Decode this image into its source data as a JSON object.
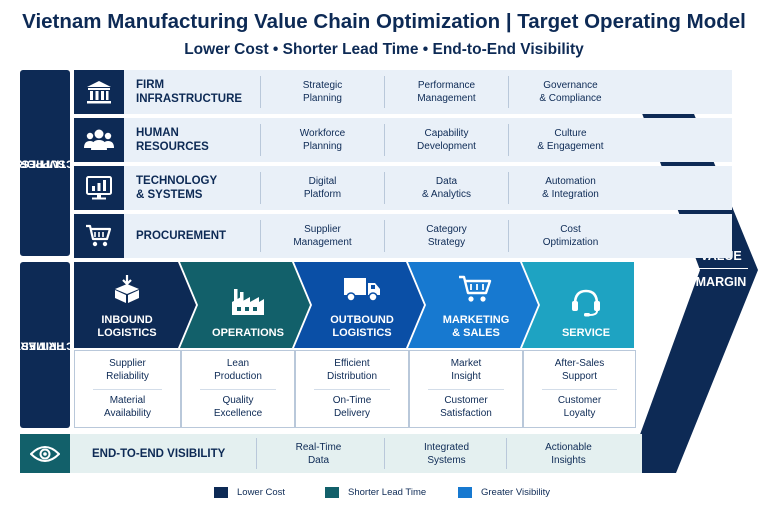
{
  "header": {
    "title": "Vietnam Manufacturing Value Chain Optimization | Target Operating Model",
    "subtitle": "Lower Cost • Shorter Lead Time • End-to-End Visibility"
  },
  "value_margin": {
    "line1": "VALUE",
    "line2": "MARGIN"
  },
  "support": {
    "label_line1": "SUPPORT",
    "label_line2": "ACTIVITIES",
    "rows": [
      {
        "icon": "bank-icon",
        "title_l1": "FIRM",
        "title_l2": "INFRASTRUCTURE",
        "cells": [
          {
            "l1": "Strategic",
            "l2": "Planning"
          },
          {
            "l1": "Performance",
            "l2": "Management"
          },
          {
            "l1": "Governance",
            "l2": "& Compliance"
          }
        ]
      },
      {
        "icon": "people-icon",
        "title_l1": "HUMAN",
        "title_l2": "RESOURCES",
        "cells": [
          {
            "l1": "Workforce",
            "l2": "Planning"
          },
          {
            "l1": "Capability",
            "l2": "Development"
          },
          {
            "l1": "Culture",
            "l2": "& Engagement"
          }
        ]
      },
      {
        "icon": "monitor-chart-icon",
        "title_l1": "TECHNOLOGY",
        "title_l2": "& SYSTEMS",
        "cells": [
          {
            "l1": "Digital",
            "l2": "Platform"
          },
          {
            "l1": "Data",
            "l2": "& Analytics"
          },
          {
            "l1": "Automation",
            "l2": "& Integration"
          }
        ]
      },
      {
        "icon": "cart-icon",
        "title_l1": "PROCUREMENT",
        "title_l2": "",
        "cells": [
          {
            "l1": "Supplier",
            "l2": "Management"
          },
          {
            "l1": "Category",
            "l2": "Strategy"
          },
          {
            "l1": "Cost",
            "l2": "Optimization"
          }
        ]
      }
    ]
  },
  "primary": {
    "label_line1": "PRIMARY",
    "label_line2": "ACTIVITIES",
    "stages": [
      {
        "icon": "boxes-icon",
        "l1": "INBOUND",
        "l2": "LOGISTICS",
        "color": "#0d2a55",
        "top": {
          "l1": "Supplier",
          "l2": "Reliability"
        },
        "bottom": {
          "l1": "Material",
          "l2": "Availability"
        }
      },
      {
        "icon": "factory-icon",
        "l1": "OPERATIONS",
        "l2": "",
        "color": "#12606a",
        "top": {
          "l1": "Lean",
          "l2": "Production"
        },
        "bottom": {
          "l1": "Quality",
          "l2": "Excellence"
        }
      },
      {
        "icon": "truck-icon",
        "l1": "OUTBOUND",
        "l2": "LOGISTICS",
        "color": "#0a4fa6",
        "top": {
          "l1": "Efficient",
          "l2": "Distribution"
        },
        "bottom": {
          "l1": "On-Time",
          "l2": "Delivery"
        }
      },
      {
        "icon": "cart-icon",
        "l1": "MARKETING",
        "l2": "& SALES",
        "color": "#1779d0",
        "top": {
          "l1": "Market",
          "l2": "Insight"
        },
        "bottom": {
          "l1": "Customer",
          "l2": "Satisfaction"
        }
      },
      {
        "icon": "headset-icon",
        "l1": "SERVICE",
        "l2": "",
        "color": "#1ea3c2",
        "top": {
          "l1": "After-Sales",
          "l2": "Support"
        },
        "bottom": {
          "l1": "Customer",
          "l2": "Loyalty"
        }
      }
    ]
  },
  "visibility": {
    "icon": "eye-icon",
    "title": "END-TO-END VISIBILITY",
    "cells": [
      {
        "l1": "Real-Time",
        "l2": "Data"
      },
      {
        "l1": "Integrated",
        "l2": "Systems"
      },
      {
        "l1": "Actionable",
        "l2": "Insights"
      }
    ]
  },
  "legend": [
    {
      "label": "Lower Cost",
      "color": "#0d2a55"
    },
    {
      "label": "Shorter Lead Time",
      "color": "#12606a"
    },
    {
      "label": "Greater Visibility",
      "color": "#1779d0"
    }
  ]
}
